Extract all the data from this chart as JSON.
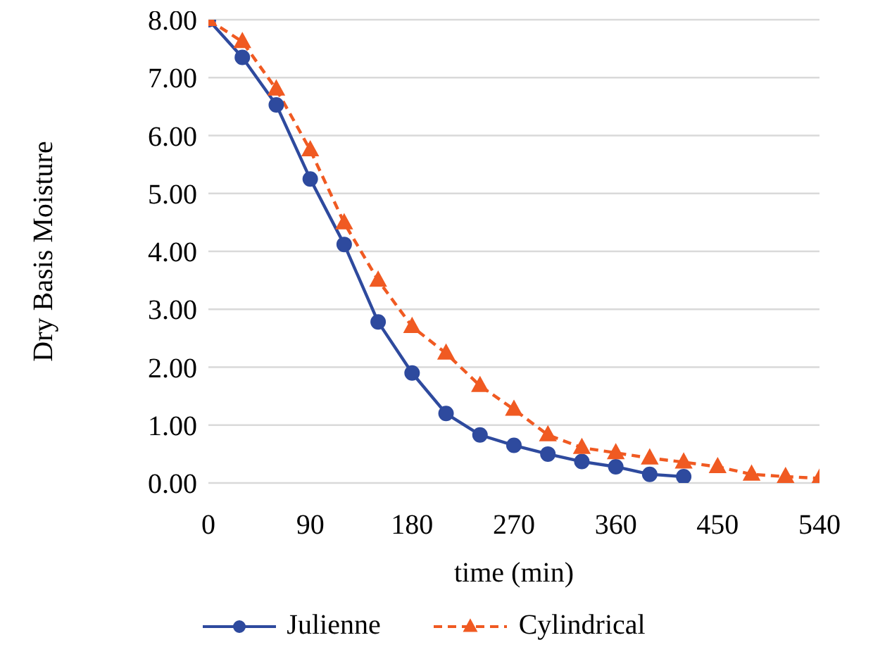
{
  "chart_data": {
    "type": "line",
    "xlabel": "time (min)",
    "ylabel": "Dry Basis Moisture",
    "xlim": [
      0,
      540
    ],
    "xticks": [
      0,
      90,
      180,
      270,
      360,
      450,
      540
    ],
    "ylim": [
      0,
      8
    ],
    "yticks": [
      {
        "value": 0,
        "label": "0.00"
      },
      {
        "value": 1,
        "label": "1.00"
      },
      {
        "value": 2,
        "label": "2.00"
      },
      {
        "value": 3,
        "label": "3.00"
      },
      {
        "value": 4,
        "label": "4.00"
      },
      {
        "value": 5,
        "label": "5.00"
      },
      {
        "value": 6,
        "label": "6.00"
      },
      {
        "value": 7,
        "label": "7.00"
      },
      {
        "value": 8,
        "label": "8.00"
      }
    ],
    "grid": "y",
    "legend": "bottom",
    "series": [
      {
        "name": "Julienne",
        "color": "#2e4a9e",
        "marker": "circle",
        "line_style": "solid",
        "x": [
          0,
          30,
          60,
          90,
          120,
          150,
          180,
          210,
          240,
          270,
          300,
          330,
          360,
          390,
          420
        ],
        "values": [
          8,
          7.35,
          6.53,
          5.25,
          4.12,
          2.78,
          1.9,
          1.2,
          0.83,
          0.65,
          0.5,
          0.37,
          0.28,
          0.15,
          0.11
        ]
      },
      {
        "name": "Cylindrical",
        "color": "#f05a22",
        "marker": "triangle",
        "line_style": "dashed",
        "x": [
          0,
          30,
          60,
          90,
          120,
          150,
          180,
          210,
          240,
          270,
          300,
          330,
          360,
          390,
          420,
          450,
          480,
          510,
          540
        ],
        "values": [
          8,
          7.62,
          6.8,
          5.75,
          4.49,
          3.5,
          2.7,
          2.24,
          1.68,
          1.27,
          0.83,
          0.61,
          0.52,
          0.43,
          0.36,
          0.28,
          0.15,
          0.11,
          0.08
        ]
      }
    ]
  }
}
